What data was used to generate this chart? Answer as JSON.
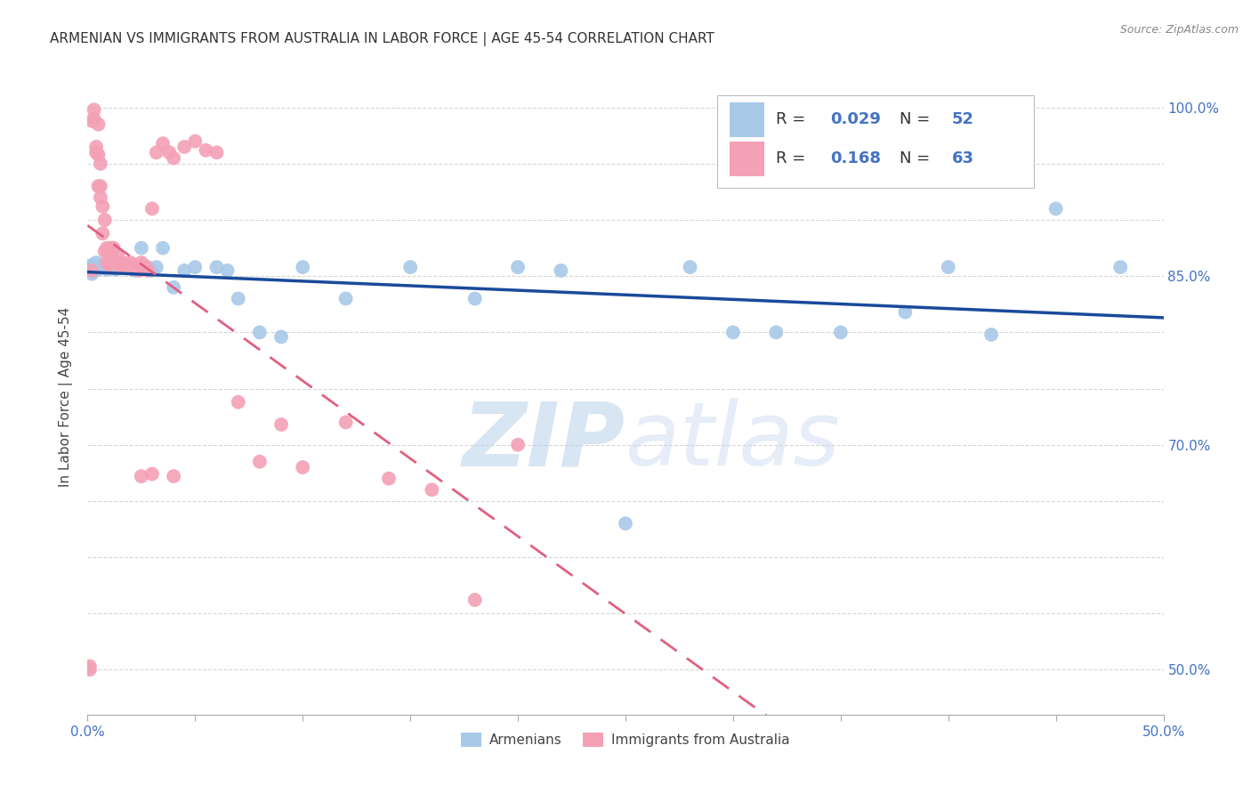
{
  "title": "ARMENIAN VS IMMIGRANTS FROM AUSTRALIA IN LABOR FORCE | AGE 45-54 CORRELATION CHART",
  "source": "Source: ZipAtlas.com",
  "ylabel": "In Labor Force | Age 45-54",
  "xlim": [
    0.0,
    0.5
  ],
  "ylim": [
    0.46,
    1.025
  ],
  "blue_R": 0.029,
  "blue_N": 52,
  "pink_R": 0.168,
  "pink_N": 63,
  "blue_color": "#a8c8e8",
  "pink_color": "#f4a0b5",
  "blue_line_color": "#1a4a9a",
  "pink_line_color": "#e06080",
  "grid_color": "#cccccc",
  "title_color": "#333333",
  "axis_color": "#4472c4",
  "watermark_zip": "ZIP",
  "watermark_atlas": "atlas",
  "blue_x": [
    0.001,
    0.001,
    0.002,
    0.002,
    0.003,
    0.003,
    0.004,
    0.004,
    0.005,
    0.005,
    0.006,
    0.007,
    0.008,
    0.009,
    0.01,
    0.011,
    0.012,
    0.013,
    0.015,
    0.016,
    0.018,
    0.02,
    0.022,
    0.025,
    0.028,
    0.03,
    0.032,
    0.035,
    0.04,
    0.045,
    0.05,
    0.06,
    0.065,
    0.07,
    0.08,
    0.09,
    0.1,
    0.12,
    0.15,
    0.18,
    0.2,
    0.22,
    0.25,
    0.28,
    0.3,
    0.32,
    0.35,
    0.38,
    0.4,
    0.42,
    0.45,
    0.48
  ],
  "blue_y": [
    0.855,
    0.858,
    0.852,
    0.86,
    0.858,
    0.855,
    0.858,
    0.862,
    0.856,
    0.858,
    0.858,
    0.858,
    0.857,
    0.856,
    0.858,
    0.857,
    0.858,
    0.856,
    0.858,
    0.858,
    0.858,
    0.857,
    0.855,
    0.875,
    0.858,
    0.855,
    0.858,
    0.875,
    0.84,
    0.855,
    0.858,
    0.858,
    0.855,
    0.83,
    0.8,
    0.796,
    0.858,
    0.83,
    0.858,
    0.83,
    0.858,
    0.855,
    0.63,
    0.858,
    0.8,
    0.8,
    0.8,
    0.818,
    0.858,
    0.798,
    0.91,
    0.858
  ],
  "pink_x": [
    0.001,
    0.001,
    0.002,
    0.002,
    0.003,
    0.003,
    0.004,
    0.004,
    0.005,
    0.005,
    0.005,
    0.006,
    0.006,
    0.006,
    0.007,
    0.007,
    0.008,
    0.008,
    0.009,
    0.009,
    0.01,
    0.01,
    0.011,
    0.011,
    0.012,
    0.012,
    0.013,
    0.014,
    0.015,
    0.016,
    0.017,
    0.018,
    0.019,
    0.02,
    0.021,
    0.022,
    0.024,
    0.025,
    0.025,
    0.026,
    0.027,
    0.028,
    0.03,
    0.032,
    0.035,
    0.038,
    0.04,
    0.045,
    0.05,
    0.055,
    0.06,
    0.07,
    0.08,
    0.09,
    0.1,
    0.12,
    0.14,
    0.16,
    0.18,
    0.2,
    0.025,
    0.03,
    0.04
  ],
  "pink_y": [
    0.5,
    0.503,
    0.855,
    0.988,
    0.99,
    0.998,
    0.96,
    0.965,
    0.985,
    0.958,
    0.93,
    0.93,
    0.95,
    0.92,
    0.888,
    0.912,
    0.872,
    0.9,
    0.862,
    0.875,
    0.87,
    0.86,
    0.875,
    0.865,
    0.862,
    0.875,
    0.862,
    0.868,
    0.86,
    0.858,
    0.862,
    0.86,
    0.858,
    0.862,
    0.86,
    0.858,
    0.855,
    0.862,
    0.858,
    0.86,
    0.858,
    0.855,
    0.91,
    0.96,
    0.968,
    0.96,
    0.955,
    0.965,
    0.97,
    0.962,
    0.96,
    0.738,
    0.685,
    0.718,
    0.68,
    0.72,
    0.67,
    0.66,
    0.562,
    0.7,
    0.672,
    0.674,
    0.672
  ]
}
